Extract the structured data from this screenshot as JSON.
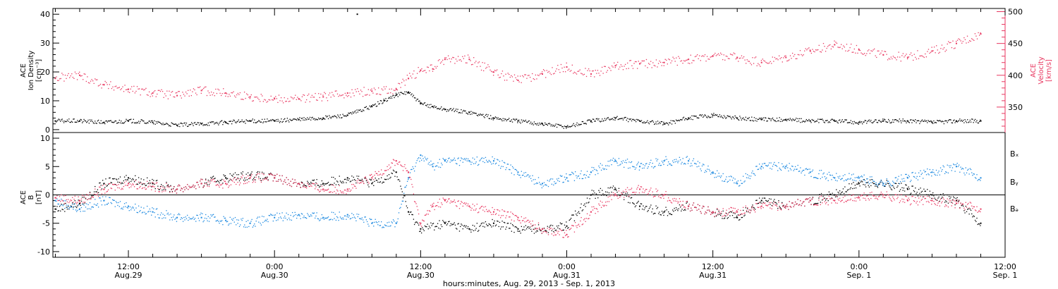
{
  "colors": {
    "density": "#000000",
    "velocity": "#e8365f",
    "bx": "#000000",
    "by": "#1a88e0",
    "bz": "#e8365f"
  },
  "xaxis": {
    "label": "hours:minutes, Aug. 29, 2013 - Sep.  1, 2013",
    "ticks": [
      {
        "t": "12:00",
        "d": "Aug.29"
      },
      {
        "t": "0:00",
        "d": "Aug.30"
      },
      {
        "t": "12:00",
        "d": "Aug.30"
      },
      {
        "t": "0:00",
        "d": "Aug.31"
      },
      {
        "t": "12:00",
        "d": "Aug.31"
      },
      {
        "t": "0:00",
        "d": "Sep. 1"
      },
      {
        "t": "12:00",
        "d": "Sep. 1"
      }
    ]
  },
  "top_panel": {
    "left_label": [
      "ACE",
      "Ion Density",
      "[cm⁻³]"
    ],
    "right_label": [
      "ACE",
      "Velocity",
      "[km/s]"
    ]
  },
  "bottom_panel": {
    "left_label": [
      "ACE",
      "B",
      "[nT]"
    ],
    "legend": [
      "Bₓ",
      "Bᵧ",
      "Bₔ"
    ]
  },
  "chart_data": [
    {
      "type": "scatter",
      "title": "",
      "xlabel": "hours:minutes, Aug. 29, 2013 - Sep.  1, 2013",
      "x_unit": "hours since Aug. 29, 2013 0:00",
      "xlim": [
        5.8,
        84
      ],
      "grid": false,
      "series": [
        {
          "name": "Ion Density",
          "axis": "left",
          "ylabel": "ACE Ion Density [cm⁻³]",
          "ylim": [
            -1,
            42
          ],
          "x": [
            6,
            8,
            10,
            12,
            14,
            16,
            18,
            20,
            22,
            24,
            26,
            28,
            30,
            32,
            33,
            34,
            35,
            36,
            37,
            38,
            40,
            42,
            44,
            46,
            48,
            50,
            52,
            54,
            56,
            58,
            60,
            62,
            64,
            66,
            68,
            70,
            72,
            74,
            76,
            78,
            80,
            82
          ],
          "values": [
            3,
            3,
            2.5,
            3,
            2.5,
            1.5,
            2,
            2.5,
            3,
            3,
            3.5,
            4,
            5,
            8,
            10,
            12,
            13,
            9,
            8,
            7,
            6,
            4,
            3,
            2,
            1,
            3,
            4,
            3,
            2,
            4,
            5,
            4,
            3.5,
            3.5,
            3,
            3,
            2.5,
            3,
            3,
            2.5,
            3,
            3
          ]
        },
        {
          "name": "Velocity",
          "axis": "right",
          "ylabel": "ACE Velocity [km/s]",
          "ylim": [
            310,
            505
          ],
          "x": [
            6,
            8,
            10,
            12,
            14,
            16,
            18,
            20,
            22,
            24,
            26,
            28,
            30,
            32,
            34,
            35,
            36,
            37,
            38,
            40,
            42,
            44,
            46,
            48,
            50,
            52,
            54,
            56,
            58,
            60,
            62,
            64,
            66,
            68,
            70,
            72,
            74,
            76,
            78,
            80,
            82
          ],
          "values": [
            395,
            400,
            385,
            378,
            372,
            368,
            376,
            372,
            366,
            363,
            363,
            366,
            372,
            375,
            378,
            395,
            408,
            410,
            425,
            425,
            405,
            392,
            402,
            413,
            402,
            415,
            418,
            420,
            425,
            430,
            428,
            420,
            428,
            438,
            448,
            440,
            432,
            428,
            438,
            450,
            465
          ]
        }
      ],
      "annotations": [
        {
          "x": 30.8,
          "y": 40,
          "series": "Ion Density",
          "note": "isolated point"
        }
      ]
    },
    {
      "type": "scatter",
      "title": "",
      "xlabel": "hours:minutes, Aug. 29, 2013 - Sep.  1, 2013",
      "x_unit": "hours since Aug. 29, 2013 0:00",
      "xlim": [
        5.8,
        84
      ],
      "ylabel": "ACE B [nT]",
      "ylim": [
        -11,
        11
      ],
      "zero_line": true,
      "grid": false,
      "legend": "right",
      "series": [
        {
          "name": "Bx",
          "x": [
            6,
            8,
            10,
            12,
            14,
            16,
            18,
            20,
            22,
            24,
            26,
            28,
            30,
            32,
            34,
            35,
            36,
            38,
            40,
            42,
            44,
            46,
            48,
            50,
            52,
            54,
            56,
            58,
            60,
            62,
            64,
            66,
            68,
            70,
            72,
            74,
            76,
            78,
            80,
            82
          ],
          "values": [
            -2.5,
            -1.5,
            2,
            3,
            2,
            1,
            2,
            3,
            3.5,
            3,
            2,
            2,
            3,
            2,
            4,
            -3,
            -6,
            -5,
            -6,
            -5,
            -6,
            -6,
            -5.5,
            0,
            1,
            -2,
            -3,
            -2,
            -3,
            -4,
            -1,
            -2,
            -1,
            0,
            2,
            2,
            1,
            0,
            -1,
            -5
          ]
        },
        {
          "name": "By",
          "x": [
            6,
            8,
            10,
            12,
            14,
            16,
            18,
            20,
            22,
            24,
            26,
            28,
            30,
            32,
            34,
            35,
            36,
            37,
            38,
            40,
            42,
            44,
            46,
            48,
            50,
            52,
            54,
            56,
            58,
            60,
            62,
            64,
            66,
            68,
            70,
            72,
            74,
            76,
            78,
            80,
            82
          ],
          "values": [
            -1,
            -2.5,
            -1,
            -2,
            -3,
            -4,
            -4,
            -4.5,
            -5,
            -4,
            -3.5,
            -4,
            -3.5,
            -5,
            -5,
            3,
            7,
            5,
            6,
            6,
            6,
            4,
            2,
            3,
            4,
            6,
            5,
            6,
            6,
            4,
            2,
            5,
            5,
            4,
            3,
            3,
            2,
            3,
            4,
            5,
            3
          ]
        },
        {
          "name": "Bz",
          "x": [
            6,
            8,
            10,
            12,
            14,
            16,
            18,
            20,
            22,
            24,
            26,
            28,
            30,
            32,
            34,
            35,
            36,
            37,
            38,
            40,
            42,
            44,
            46,
            48,
            50,
            52,
            54,
            56,
            58,
            60,
            62,
            64,
            66,
            68,
            70,
            72,
            74,
            76,
            78,
            80,
            82
          ],
          "values": [
            -0.5,
            -1,
            1,
            2,
            1.5,
            1,
            2,
            2,
            3,
            3,
            2,
            1,
            1,
            3,
            6,
            4,
            -5,
            -2,
            -1,
            -2,
            -3,
            -4,
            -6,
            -7,
            -3,
            0,
            1,
            0,
            -2,
            -3,
            -3,
            -2,
            -2,
            -1,
            -1,
            -0.5,
            0,
            -1,
            -1,
            -1.5,
            -2.5
          ]
        }
      ]
    }
  ]
}
